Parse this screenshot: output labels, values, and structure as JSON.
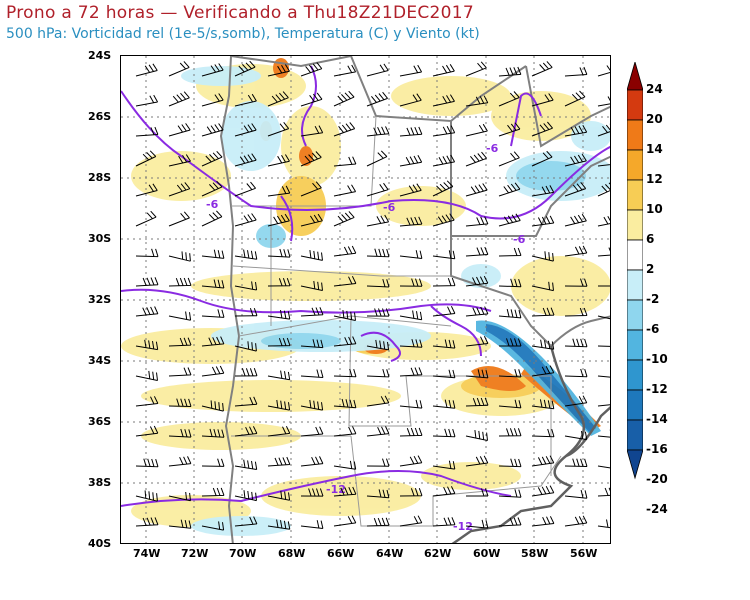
{
  "title": "Prono a 72 horas — Verificando a Thu18Z21DEC2017",
  "subtitle": "500 hPa: Vorticidad rel (1e-5/s,somb), Temperatura (C) y Viento (kt)",
  "lat_labels": [
    "24S",
    "26S",
    "28S",
    "30S",
    "32S",
    "34S",
    "36S",
    "38S",
    "40S"
  ],
  "lon_labels": [
    "74W",
    "72W",
    "70W",
    "68W",
    "66W",
    "64W",
    "62W",
    "60W",
    "58W",
    "56W"
  ],
  "contour_labels": [
    "-6",
    "-6",
    "-6",
    "-6",
    "-12",
    "-12"
  ],
  "colorbar": {
    "labels": [
      "24",
      "20",
      "14",
      "12",
      "10",
      "6",
      "2",
      "-2",
      "-6",
      "-10",
      "-12",
      "-14",
      "-16",
      "-20",
      "-24"
    ],
    "colors": [
      "#8a0000",
      "#d43a10",
      "#ef7a18",
      "#f5a82a",
      "#f7cd55",
      "#faeda0",
      "#ffffff",
      "#c8eef8",
      "#8fd6ee",
      "#52b5e0",
      "#2f96cf",
      "#1e78bc",
      "#185fa8",
      "#104590"
    ]
  },
  "colors": {
    "temperature_contour": "#8a2be2",
    "borders": "#808080",
    "wind_barbs": "#000000",
    "title": "#b0202a",
    "subtitle": "#2a8fc0"
  }
}
